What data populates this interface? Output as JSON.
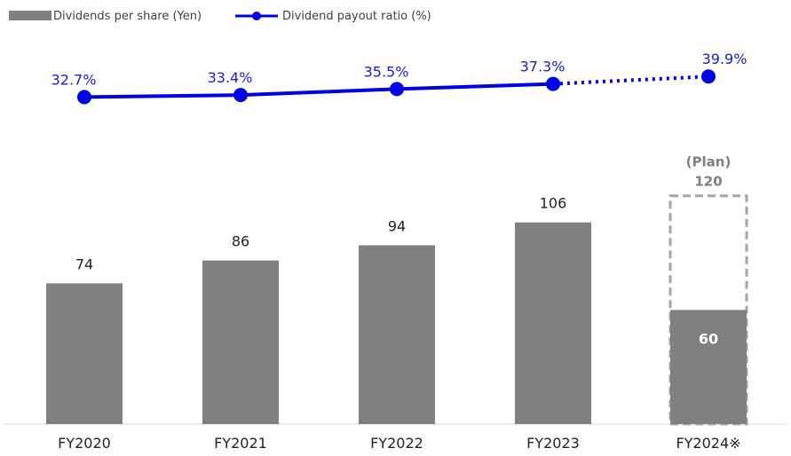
{
  "chart_data": {
    "type": "bar",
    "categories": [
      "FY2020",
      "FY2021",
      "FY2022",
      "FY2023",
      "FY2024※"
    ],
    "legend": {
      "bar_series": "Dividends per share (Yen)",
      "line_series": "Dividend payout ratio (%)",
      "placement": "top-left"
    },
    "series": [
      {
        "name": "Dividends per share (Yen)",
        "type": "bar",
        "values": [
          74,
          86,
          94,
          106,
          60
        ],
        "labels": [
          "74",
          "86",
          "94",
          "106",
          "60"
        ],
        "color": "#808080"
      },
      {
        "name": "Dividend payout ratio (%)",
        "type": "line",
        "values": [
          32.7,
          33.4,
          35.5,
          37.3,
          39.9
        ],
        "labels": [
          "32.7%",
          "33.4%",
          "35.5%",
          "37.3%",
          "39.9%"
        ],
        "color": "#0000e6",
        "projected_from_index": 3
      }
    ],
    "plan": {
      "category_index": 4,
      "value": 120,
      "tag": "(Plan)",
      "value_label": "120",
      "outline_color": "#a6a6a6"
    },
    "bar_ylim": [
      0,
      130
    ],
    "line_ylim": [
      0,
      42
    ],
    "grid": false
  }
}
